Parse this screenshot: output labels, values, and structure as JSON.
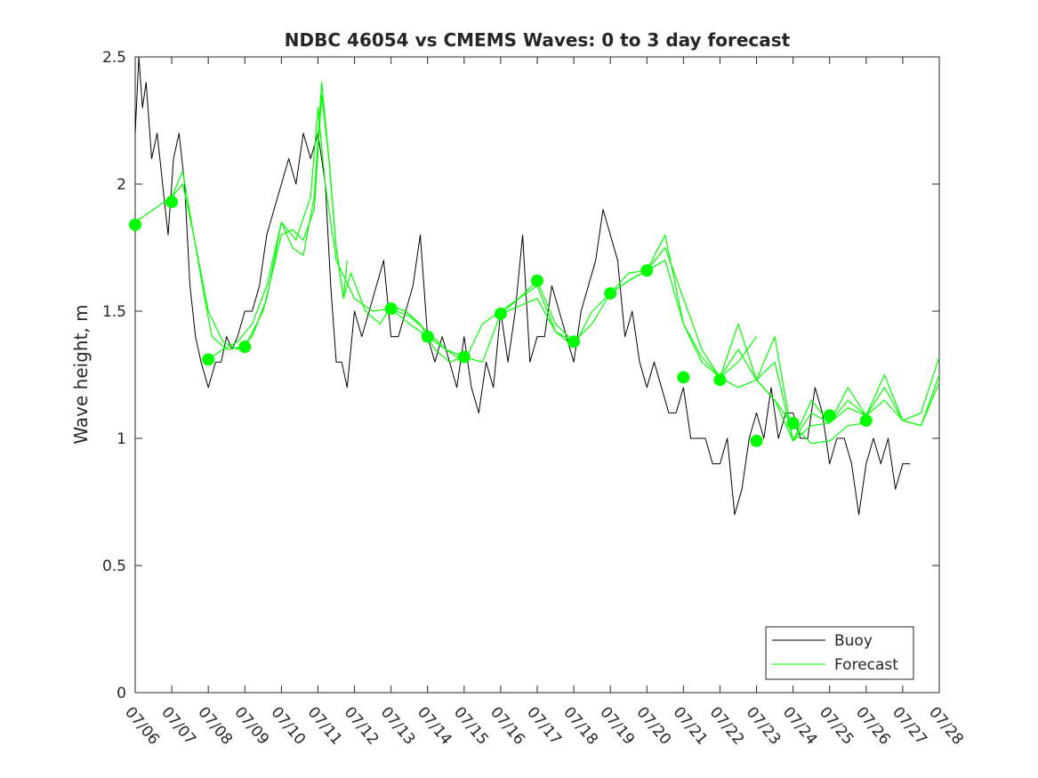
{
  "chart_data": {
    "type": "line",
    "title": "NDBC 46054 vs CMEMS Waves: 0 to 3 day forecast",
    "xlabel": "",
    "ylabel": "Wave height, m",
    "xlim": [
      "07/06",
      "07/28"
    ],
    "ylim": [
      0,
      2.5
    ],
    "x_ticks": [
      "07/06",
      "07/07",
      "07/08",
      "07/09",
      "07/10",
      "07/11",
      "07/12",
      "07/13",
      "07/14",
      "07/15",
      "07/16",
      "07/17",
      "07/18",
      "07/19",
      "07/20",
      "07/21",
      "07/22",
      "07/23",
      "07/24",
      "07/25",
      "07/26",
      "07/27",
      "07/28"
    ],
    "y_ticks": [
      "0",
      "0.5",
      "1",
      "1.5",
      "2",
      "2.5"
    ],
    "grid": false,
    "legend": {
      "placement": "bottom-right",
      "entries": [
        "Buoy",
        "Forecast"
      ]
    },
    "colors": {
      "buoy": "#000000",
      "forecast": "#00ff00",
      "axes": "#262626"
    },
    "series": [
      {
        "name": "Buoy",
        "style": "line",
        "x": [
          0.0,
          0.1,
          0.2,
          0.3,
          0.45,
          0.6,
          0.75,
          0.9,
          1.05,
          1.2,
          1.35,
          1.5,
          1.65,
          1.8,
          2.0,
          2.2,
          2.35,
          2.5,
          2.65,
          2.8,
          3.0,
          3.2,
          3.4,
          3.6,
          3.8,
          4.0,
          4.2,
          4.4,
          4.6,
          4.8,
          5.0,
          5.2,
          5.35,
          5.5,
          5.65,
          5.8,
          6.0,
          6.2,
          6.4,
          6.6,
          6.8,
          7.0,
          7.2,
          7.4,
          7.6,
          7.8,
          8.0,
          8.2,
          8.4,
          8.6,
          8.8,
          9.0,
          9.2,
          9.4,
          9.6,
          9.8,
          10.0,
          10.2,
          10.4,
          10.6,
          10.8,
          11.0,
          11.2,
          11.4,
          11.6,
          11.8,
          12.0,
          12.2,
          12.4,
          12.6,
          12.8,
          13.0,
          13.2,
          13.4,
          13.6,
          13.8,
          14.0,
          14.2,
          14.4,
          14.6,
          14.8,
          15.0,
          15.2,
          15.4,
          15.6,
          15.8,
          16.0,
          16.2,
          16.4,
          16.6,
          16.8,
          17.0,
          17.2,
          17.4,
          17.6,
          17.8,
          18.0,
          18.2,
          18.4,
          18.6,
          18.8,
          19.0,
          19.2,
          19.4,
          19.6,
          19.8,
          20.0,
          20.2,
          20.4,
          20.6,
          20.8,
          21.0,
          21.2
        ],
        "y": [
          2.2,
          2.5,
          2.3,
          2.4,
          2.1,
          2.2,
          2.0,
          1.8,
          2.1,
          2.2,
          2.0,
          1.6,
          1.4,
          1.3,
          1.2,
          1.3,
          1.3,
          1.4,
          1.35,
          1.4,
          1.5,
          1.5,
          1.6,
          1.8,
          1.9,
          2.0,
          2.1,
          2.0,
          2.2,
          2.1,
          2.2,
          2.0,
          1.6,
          1.3,
          1.3,
          1.2,
          1.5,
          1.4,
          1.5,
          1.6,
          1.7,
          1.4,
          1.4,
          1.5,
          1.6,
          1.8,
          1.4,
          1.3,
          1.4,
          1.3,
          1.2,
          1.4,
          1.2,
          1.1,
          1.3,
          1.2,
          1.5,
          1.3,
          1.5,
          1.8,
          1.3,
          1.4,
          1.4,
          1.6,
          1.5,
          1.4,
          1.3,
          1.5,
          1.6,
          1.7,
          1.9,
          1.8,
          1.7,
          1.4,
          1.5,
          1.3,
          1.2,
          1.3,
          1.2,
          1.1,
          1.1,
          1.2,
          1.0,
          1.0,
          1.0,
          0.9,
          0.9,
          1.0,
          0.7,
          0.8,
          1.0,
          1.1,
          1.0,
          1.2,
          1.0,
          1.1,
          1.1,
          1.0,
          1.0,
          1.2,
          1.1,
          0.9,
          1.0,
          1.0,
          0.9,
          0.7,
          0.9,
          1.0,
          0.9,
          1.0,
          0.8,
          0.9,
          0.9
        ]
      },
      {
        "name": "Forecast",
        "style": "line",
        "x": [
          0.0,
          0.5,
          1.0,
          1.3,
          1.6,
          1.9,
          2.1,
          2.5,
          3.0,
          3.5,
          4.0,
          4.3,
          4.6,
          4.9,
          5.1,
          5.3,
          5.5,
          5.7,
          5.8
        ],
        "y": [
          1.85,
          1.9,
          1.95,
          2.0,
          1.8,
          1.55,
          1.4,
          1.35,
          1.36,
          1.5,
          1.8,
          1.82,
          1.78,
          1.9,
          2.35,
          2.1,
          1.75,
          1.55,
          1.7
        ]
      },
      {
        "name": "Forecast",
        "style": "line",
        "x": [
          1.0,
          1.3,
          1.6,
          2.0,
          2.4,
          2.8,
          3.2,
          3.6,
          4.0,
          4.3,
          4.6,
          4.9,
          5.1,
          5.3,
          5.5,
          5.7,
          5.9,
          6.3,
          6.7,
          7.0,
          7.4,
          7.8,
          8.2,
          8.6,
          9.0
        ],
        "y": [
          1.95,
          2.05,
          1.8,
          1.5,
          1.38,
          1.35,
          1.4,
          1.55,
          1.85,
          1.75,
          1.72,
          1.95,
          2.4,
          2.1,
          1.75,
          1.55,
          1.65,
          1.5,
          1.45,
          1.52,
          1.5,
          1.45,
          1.35,
          1.3,
          1.32
        ]
      },
      {
        "name": "Forecast",
        "style": "line",
        "x": [
          2.0,
          2.4,
          2.8,
          3.2,
          3.6,
          4.0,
          4.4,
          4.8,
          5.0,
          5.2,
          5.5,
          6.0,
          6.5,
          7.0,
          7.5,
          8.0,
          8.5,
          9.0,
          9.5,
          10.0,
          10.5,
          11.0,
          11.5,
          12.0
        ],
        "y": [
          1.31,
          1.35,
          1.38,
          1.45,
          1.6,
          1.85,
          1.78,
          1.95,
          2.3,
          2.0,
          1.7,
          1.55,
          1.5,
          1.51,
          1.48,
          1.42,
          1.35,
          1.3,
          1.45,
          1.5,
          1.55,
          1.6,
          1.42,
          1.38
        ]
      },
      {
        "name": "Forecast",
        "style": "line",
        "x": [
          7.0,
          7.5,
          8.0,
          8.5,
          9.0,
          9.5,
          10.0,
          10.5,
          11.0,
          11.5,
          12.0,
          12.5,
          13.0,
          13.5,
          14.0,
          14.5,
          15.0,
          15.5,
          16.0,
          16.5,
          17.0
        ],
        "y": [
          1.51,
          1.45,
          1.4,
          1.35,
          1.32,
          1.3,
          1.49,
          1.55,
          1.62,
          1.45,
          1.38,
          1.45,
          1.57,
          1.65,
          1.66,
          1.75,
          1.55,
          1.35,
          1.24,
          1.3,
          1.4
        ]
      },
      {
        "name": "Forecast",
        "style": "line",
        "x": [
          10.0,
          10.5,
          11.0,
          11.5,
          12.0,
          12.5,
          13.0,
          13.5,
          14.0,
          14.5,
          15.0,
          15.5,
          16.0,
          16.5,
          17.0,
          17.5,
          18.0,
          18.5,
          19.0,
          19.5,
          20.0
        ],
        "y": [
          1.49,
          1.52,
          1.55,
          1.42,
          1.36,
          1.5,
          1.57,
          1.62,
          1.66,
          1.8,
          1.45,
          1.32,
          1.24,
          1.2,
          1.23,
          1.15,
          1.05,
          0.98,
          0.99,
          1.05,
          1.06
        ]
      },
      {
        "name": "Forecast",
        "style": "line",
        "x": [
          13.0,
          13.5,
          14.0,
          14.5,
          15.0,
          15.5,
          16.0,
          16.5,
          17.0,
          17.5,
          18.0,
          18.5,
          19.0,
          19.5,
          20.0,
          20.5,
          21.0,
          21.5,
          22.0
        ],
        "y": [
          1.57,
          1.62,
          1.66,
          1.7,
          1.45,
          1.3,
          1.24,
          1.35,
          1.23,
          1.15,
          0.99,
          1.1,
          1.06,
          1.15,
          1.09,
          1.15,
          1.07,
          1.05,
          1.25
        ]
      },
      {
        "name": "Forecast",
        "style": "line",
        "x": [
          16.0,
          16.5,
          17.0,
          17.5,
          18.0,
          18.5,
          19.0,
          19.5,
          20.0,
          20.5,
          21.0,
          21.5,
          22.0
        ],
        "y": [
          1.24,
          1.45,
          1.23,
          1.3,
          0.99,
          1.15,
          1.06,
          1.2,
          1.09,
          1.25,
          1.07,
          1.1,
          1.32
        ]
      },
      {
        "name": "Forecast",
        "style": "line",
        "x": [
          17.0,
          17.5,
          18.0,
          18.5,
          19.0,
          19.5,
          20.0,
          20.5,
          21.0,
          21.5,
          22.0
        ],
        "y": [
          1.23,
          1.4,
          0.99,
          1.05,
          1.06,
          1.12,
          1.09,
          1.2,
          1.07,
          1.05,
          1.22
        ]
      },
      {
        "name": "Forecast",
        "style": "markers",
        "x": [
          0,
          1,
          2,
          3,
          7,
          8,
          9,
          10,
          11,
          12,
          13,
          14,
          15,
          16,
          17,
          18,
          19,
          20
        ],
        "y": [
          1.84,
          1.93,
          1.31,
          1.36,
          1.51,
          1.4,
          1.32,
          1.49,
          1.62,
          1.38,
          1.57,
          1.66,
          1.24,
          1.23,
          0.99,
          1.06,
          1.09,
          1.07
        ]
      }
    ]
  }
}
